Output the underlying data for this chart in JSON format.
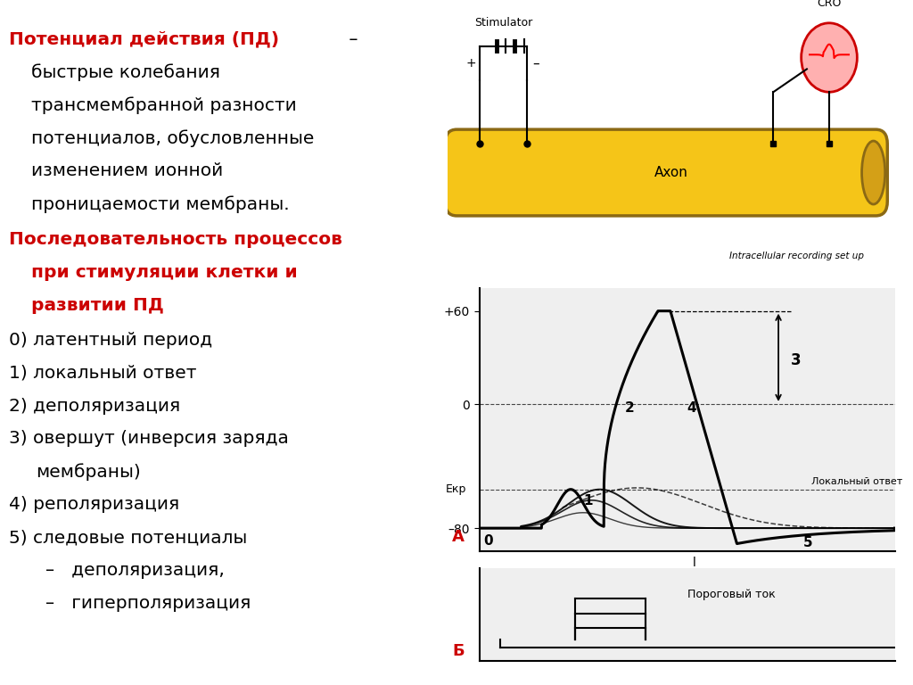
{
  "bg_color": "#ffffff",
  "axon_color": "#f5c518",
  "axon_outline": "#8B6914",
  "stimulator_label": "Stimulator",
  "axon_label": "Axon",
  "cro_label": "CRO",
  "recording_label": "Intracellular recording set up",
  "ekr_level": -55,
  "ekr_label": "Екр",
  "lokalny_label": "Локальный ответ",
  "porog_label": "Пороговый ток",
  "label_A": "А",
  "label_B": "Б",
  "title_line1_red": "Потенциал действия (ПД)",
  "title_line1_black": " –",
  "title_line2": "быстрые колебания",
  "title_line3": "трансмембранной разности",
  "title_line4": "потенциалов, обусловленные",
  "title_line5": "изменением ионной",
  "title_line6": "проницаемости мембраны.",
  "seq_title1": "Последовательность процессов",
  "seq_title2": "при стимуляции клетки и",
  "seq_title3": "развитии ПД",
  "item0": "0) латентный период",
  "item1": "1) локальный ответ",
  "item2": "2) деполяризация",
  "item3a": "3) овершут (инверсия заряда",
  "item3b": "мембраны)",
  "item4": "4) реполяризация",
  "item5": "5) следовые потенциалы",
  "item5a": "–   деполяризация,",
  "item5b": "–   гиперполяризация"
}
